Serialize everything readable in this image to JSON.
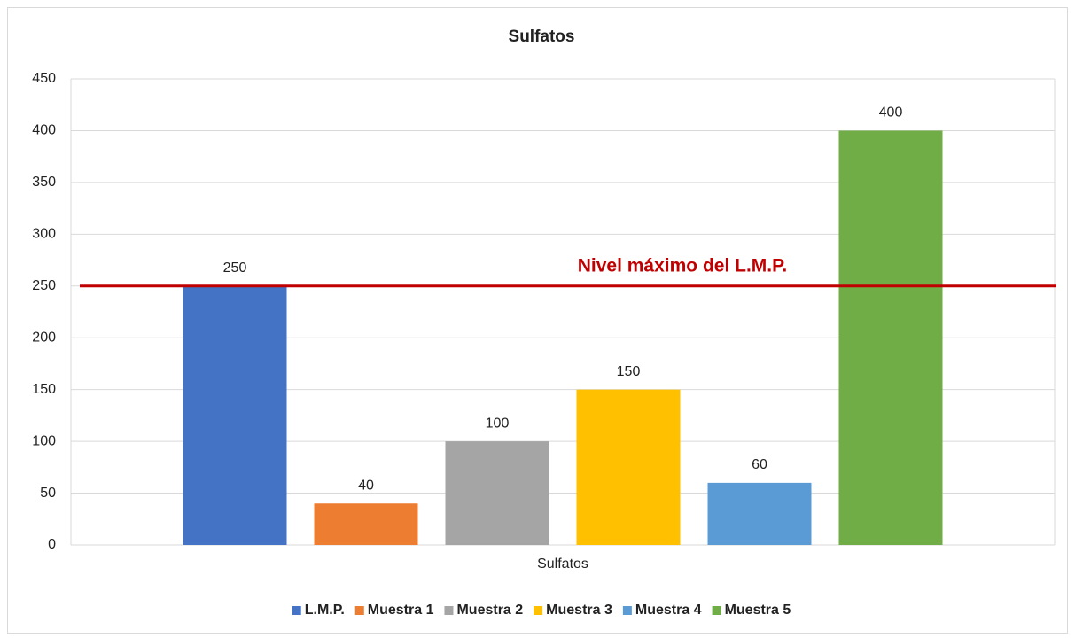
{
  "chart_data": {
    "type": "bar",
    "title": "Sulfatos",
    "categories": [
      "Sulfatos"
    ],
    "series": [
      {
        "name": "L.M.P.",
        "color": "#4472c4",
        "values": [
          250
        ]
      },
      {
        "name": "Muestra 1",
        "color": "#ed7d31",
        "values": [
          40
        ]
      },
      {
        "name": "Muestra 2",
        "color": "#a5a5a5",
        "values": [
          100
        ]
      },
      {
        "name": "Muestra 3",
        "color": "#ffc000",
        "values": [
          150
        ]
      },
      {
        "name": "Muestra 4",
        "color": "#5b9bd5",
        "values": [
          60
        ]
      },
      {
        "name": "Muestra 5",
        "color": "#70ad47",
        "values": [
          400
        ]
      }
    ],
    "ylim": [
      0,
      450
    ],
    "yticks": [
      0,
      50,
      100,
      150,
      200,
      250,
      300,
      350,
      400,
      450
    ],
    "grid": true,
    "legend": "bottom",
    "annotations": [
      {
        "text": "Nivel máximo del L.M.P.",
        "value": 250,
        "color": "#c00000"
      }
    ]
  }
}
